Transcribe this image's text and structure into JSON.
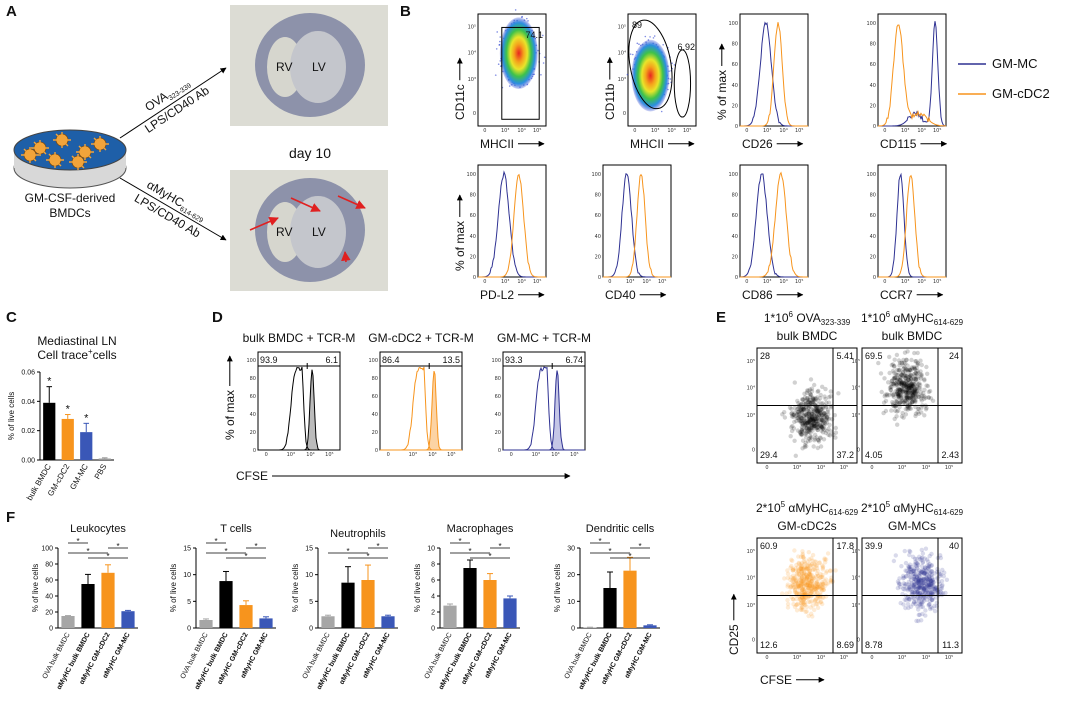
{
  "panel_labels": [
    "A",
    "B",
    "C",
    "D",
    "E",
    "F"
  ],
  "flow_axis_ticks": [
    "0",
    "10³",
    "10⁴",
    "10⁵"
  ],
  "histogram_y_ticks": [
    "0",
    "20",
    "40",
    "60",
    "80",
    "100"
  ],
  "panel_a": {
    "cell_label": [
      "GM-CSF-derived",
      "BMDCs"
    ],
    "top_arrow": {
      "antigen": "OVA",
      "antigen_sub": "323-339",
      "adjuvant": "LPS/CD40 Ab"
    },
    "bottom_arrow": {
      "antigen": "αMyHC",
      "antigen_sub": "614-629",
      "adjuvant": "LPS/CD40 Ab"
    },
    "timepoint": "day 10",
    "heart_labels": [
      "RV",
      "LV"
    ]
  },
  "panel_b": {
    "plots": [
      {
        "y_label": "CD11c",
        "x_label": "MHCII",
        "gates": [
          "74.1"
        ]
      },
      {
        "y_label": "CD11b",
        "x_label": "MHCII",
        "gates": [
          "89",
          "6.92"
        ]
      },
      {
        "y_label": "% of max",
        "x_label": "CD26"
      },
      {
        "x_label": "CD115"
      },
      {
        "y_label": "% of max",
        "x_label": "PD-L2"
      },
      {
        "x_label": "CD40"
      },
      {
        "x_label": "CD86"
      },
      {
        "x_label": "CCR7"
      }
    ],
    "legend": [
      {
        "name": "GM-MC",
        "color": "#2e3192"
      },
      {
        "name": "GM-cDC2",
        "color": "#f7941d"
      }
    ]
  },
  "panel_d": {
    "y_label": "% of max",
    "x_label": "CFSE",
    "plots": [
      {
        "title": "bulk BMDC + TCR-M",
        "color": "#000000",
        "gates": [
          "93.9",
          "6.1"
        ]
      },
      {
        "title": "GM-cDC2 + TCR-M",
        "color": "#f7941d",
        "gates": [
          "86.4",
          "13.5"
        ]
      },
      {
        "title": "GM-MC + TCR-M",
        "color": "#2e3192",
        "gates": [
          "93.3",
          "6.74"
        ]
      }
    ]
  },
  "panel_e": {
    "y_label": "CD25",
    "x_label": "CFSE",
    "plots": [
      {
        "dose": "1*10",
        "exp": "6",
        "antigen": " OVA",
        "antigen_sub": "323-339",
        "line2": "bulk BMDC",
        "color": "#000000",
        "quadrants": [
          "28",
          "5.41",
          "29.4",
          "37.2"
        ]
      },
      {
        "dose": "1*10",
        "exp": "6",
        "antigen": " αMyHC",
        "antigen_sub": "614-629",
        "line2": "bulk BMDC",
        "color": "#000000",
        "quadrants": [
          "69.5",
          "24",
          "4.05",
          "2.43"
        ]
      },
      {
        "dose": "2*10",
        "exp": "5",
        "antigen": " αMyHC",
        "antigen_sub": "614-629",
        "line2": "GM-cDC2s",
        "color": "#f7941d",
        "quadrants": [
          "60.9",
          "17.8",
          "12.6",
          "8.69"
        ]
      },
      {
        "dose": "2*10",
        "exp": "5",
        "antigen": " αMyHC",
        "antigen_sub": "614-629",
        "line2": "GM-MCs",
        "color": "#2e3192",
        "quadrants": [
          "39.9",
          "40",
          "8.78",
          "11.3"
        ]
      }
    ]
  },
  "chart_data": [
    {
      "type": "bar",
      "title": "Mediastinal LN",
      "subtitle": {
        "text": "Cell trace",
        "sup": "+",
        "after": "cells"
      },
      "y_label": "% of live cells",
      "categories": [
        "bulk BMDC",
        "GM-cDC2",
        "GM-MC",
        "PBS"
      ],
      "values": [
        0.039,
        0.028,
        0.019,
        0.001
      ],
      "errors": [
        0.011,
        0.003,
        0.006,
        0.0005
      ],
      "colors": [
        "#000000",
        "#f7941d",
        "#3a57b7",
        "#999999"
      ],
      "label_colors": [
        "#000000",
        "#f7941d",
        "#2e3192",
        "#000000"
      ],
      "ylim": [
        0,
        0.06
      ],
      "yticks": [
        {
          "value": 0,
          "label": "0.00"
        },
        {
          "value": 0.02,
          "label": "0.02"
        },
        {
          "value": 0.04,
          "label": "0.04"
        },
        {
          "value": 0.06,
          "label": "0.06"
        }
      ],
      "annotations": [
        "*",
        "*",
        "*"
      ]
    },
    {
      "type": "bar",
      "title": "Leukocytes",
      "y_label": "% of live cells",
      "categories": [
        "OVA bulk BMDC",
        "αMyHC bulk BMDC",
        "αMyHC GM-cDC2",
        "αMyHC GM-MC"
      ],
      "values": [
        15,
        55,
        69,
        21
      ],
      "errors": [
        0.5,
        12,
        10,
        1
      ],
      "colors": [
        "#a6a6a6",
        "#000000",
        "#f7941d",
        "#3a57b7"
      ],
      "ylim": [
        0,
        100
      ],
      "yticks": [
        0,
        20,
        40,
        60,
        80,
        100
      ],
      "significance": [
        "*",
        "*",
        "*",
        "*"
      ]
    },
    {
      "type": "bar",
      "title": "T cells",
      "y_label": "% of live cells",
      "categories": [
        "OVA bulk BMDC",
        "αMyHC bulk BMDC",
        "αMyHC GM-cDC2",
        "αMyHC GM-MC"
      ],
      "values": [
        1.5,
        8.8,
        4.3,
        1.8
      ],
      "errors": [
        0.2,
        1.8,
        0.8,
        0.3
      ],
      "colors": [
        "#a6a6a6",
        "#000000",
        "#f7941d",
        "#3a57b7"
      ],
      "ylim": [
        0,
        15
      ],
      "yticks": [
        0,
        5,
        10,
        15
      ],
      "significance": [
        "*",
        "*",
        "*",
        "*"
      ]
    },
    {
      "type": "bar",
      "title": "Neutrophils",
      "y_label": "% of live cells",
      "categories": [
        "OVA bulk BMDC",
        "αMyHC bulk BMDC",
        "αMyHC GM-cDC2",
        "αMyHC GM-MC"
      ],
      "values": [
        2.2,
        8.5,
        9,
        2.2
      ],
      "errors": [
        0.2,
        3,
        2.8,
        0.2
      ],
      "colors": [
        "#a6a6a6",
        "#000000",
        "#f7941d",
        "#3a57b7"
      ],
      "ylim": [
        0,
        15
      ],
      "yticks": [
        0,
        5,
        10,
        15
      ],
      "significance": [
        "*",
        "*",
        "*"
      ]
    },
    {
      "type": "bar",
      "title": "Macrophages",
      "y_label": "% of live cells",
      "categories": [
        "OVA bulk BMDC",
        "αMyHC bulk BMDC",
        "αMyHC GM-cDC2",
        "αMyHC GM-MC"
      ],
      "values": [
        2.8,
        7.5,
        6,
        3.7
      ],
      "errors": [
        0.2,
        1,
        0.8,
        0.3
      ],
      "colors": [
        "#a6a6a6",
        "#000000",
        "#f7941d",
        "#3a57b7"
      ],
      "ylim": [
        0,
        10
      ],
      "yticks": [
        0,
        2,
        4,
        6,
        8,
        10
      ],
      "significance": [
        "*",
        "*",
        "*",
        "*"
      ]
    },
    {
      "type": "bar",
      "title": "Dendritic cells",
      "y_label": "% of live cells",
      "categories": [
        "OVA bulk BMDC",
        "αMyHC bulk BMDC",
        "αMyHC GM-cDC2",
        "αMyHC GM-MC"
      ],
      "values": [
        0.2,
        15,
        21.5,
        1
      ],
      "errors": [
        0.1,
        6,
        5,
        0.2
      ],
      "colors": [
        "#a6a6a6",
        "#000000",
        "#f7941d",
        "#3a57b7"
      ],
      "ylim": [
        0,
        30
      ],
      "yticks": [
        0,
        10,
        20,
        30
      ],
      "significance": [
        "*",
        "*",
        "*",
        "*"
      ]
    }
  ]
}
